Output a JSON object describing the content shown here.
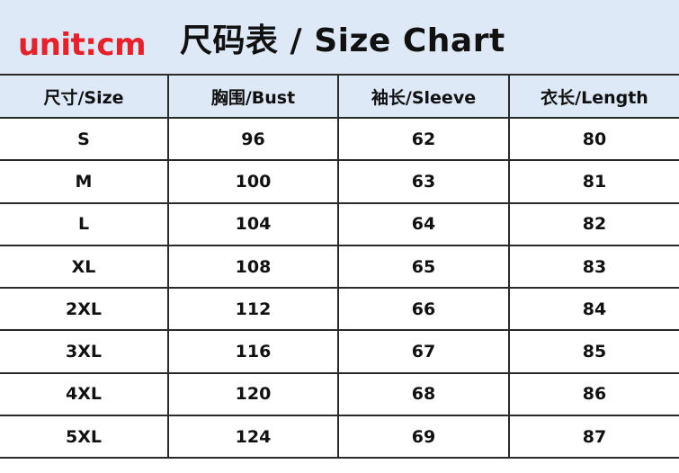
{
  "header": {
    "unit_label": "unit:cm",
    "title": "尺码表 / Size Chart",
    "background_color": "#dde9f6",
    "unit_color": "#e8202a"
  },
  "table": {
    "columns": [
      "尺寸/Size",
      "胸围/Bust",
      "袖长/Sleeve",
      "衣长/Length"
    ],
    "rows": [
      [
        "S",
        "96",
        "62",
        "80"
      ],
      [
        "M",
        "100",
        "63",
        "81"
      ],
      [
        "L",
        "104",
        "64",
        "82"
      ],
      [
        "XL",
        "108",
        "65",
        "83"
      ],
      [
        "2XL",
        "112",
        "66",
        "84"
      ],
      [
        "3XL",
        "116",
        "67",
        "85"
      ],
      [
        "4XL",
        "120",
        "68",
        "86"
      ],
      [
        "5XL",
        "124",
        "69",
        "87"
      ]
    ]
  }
}
